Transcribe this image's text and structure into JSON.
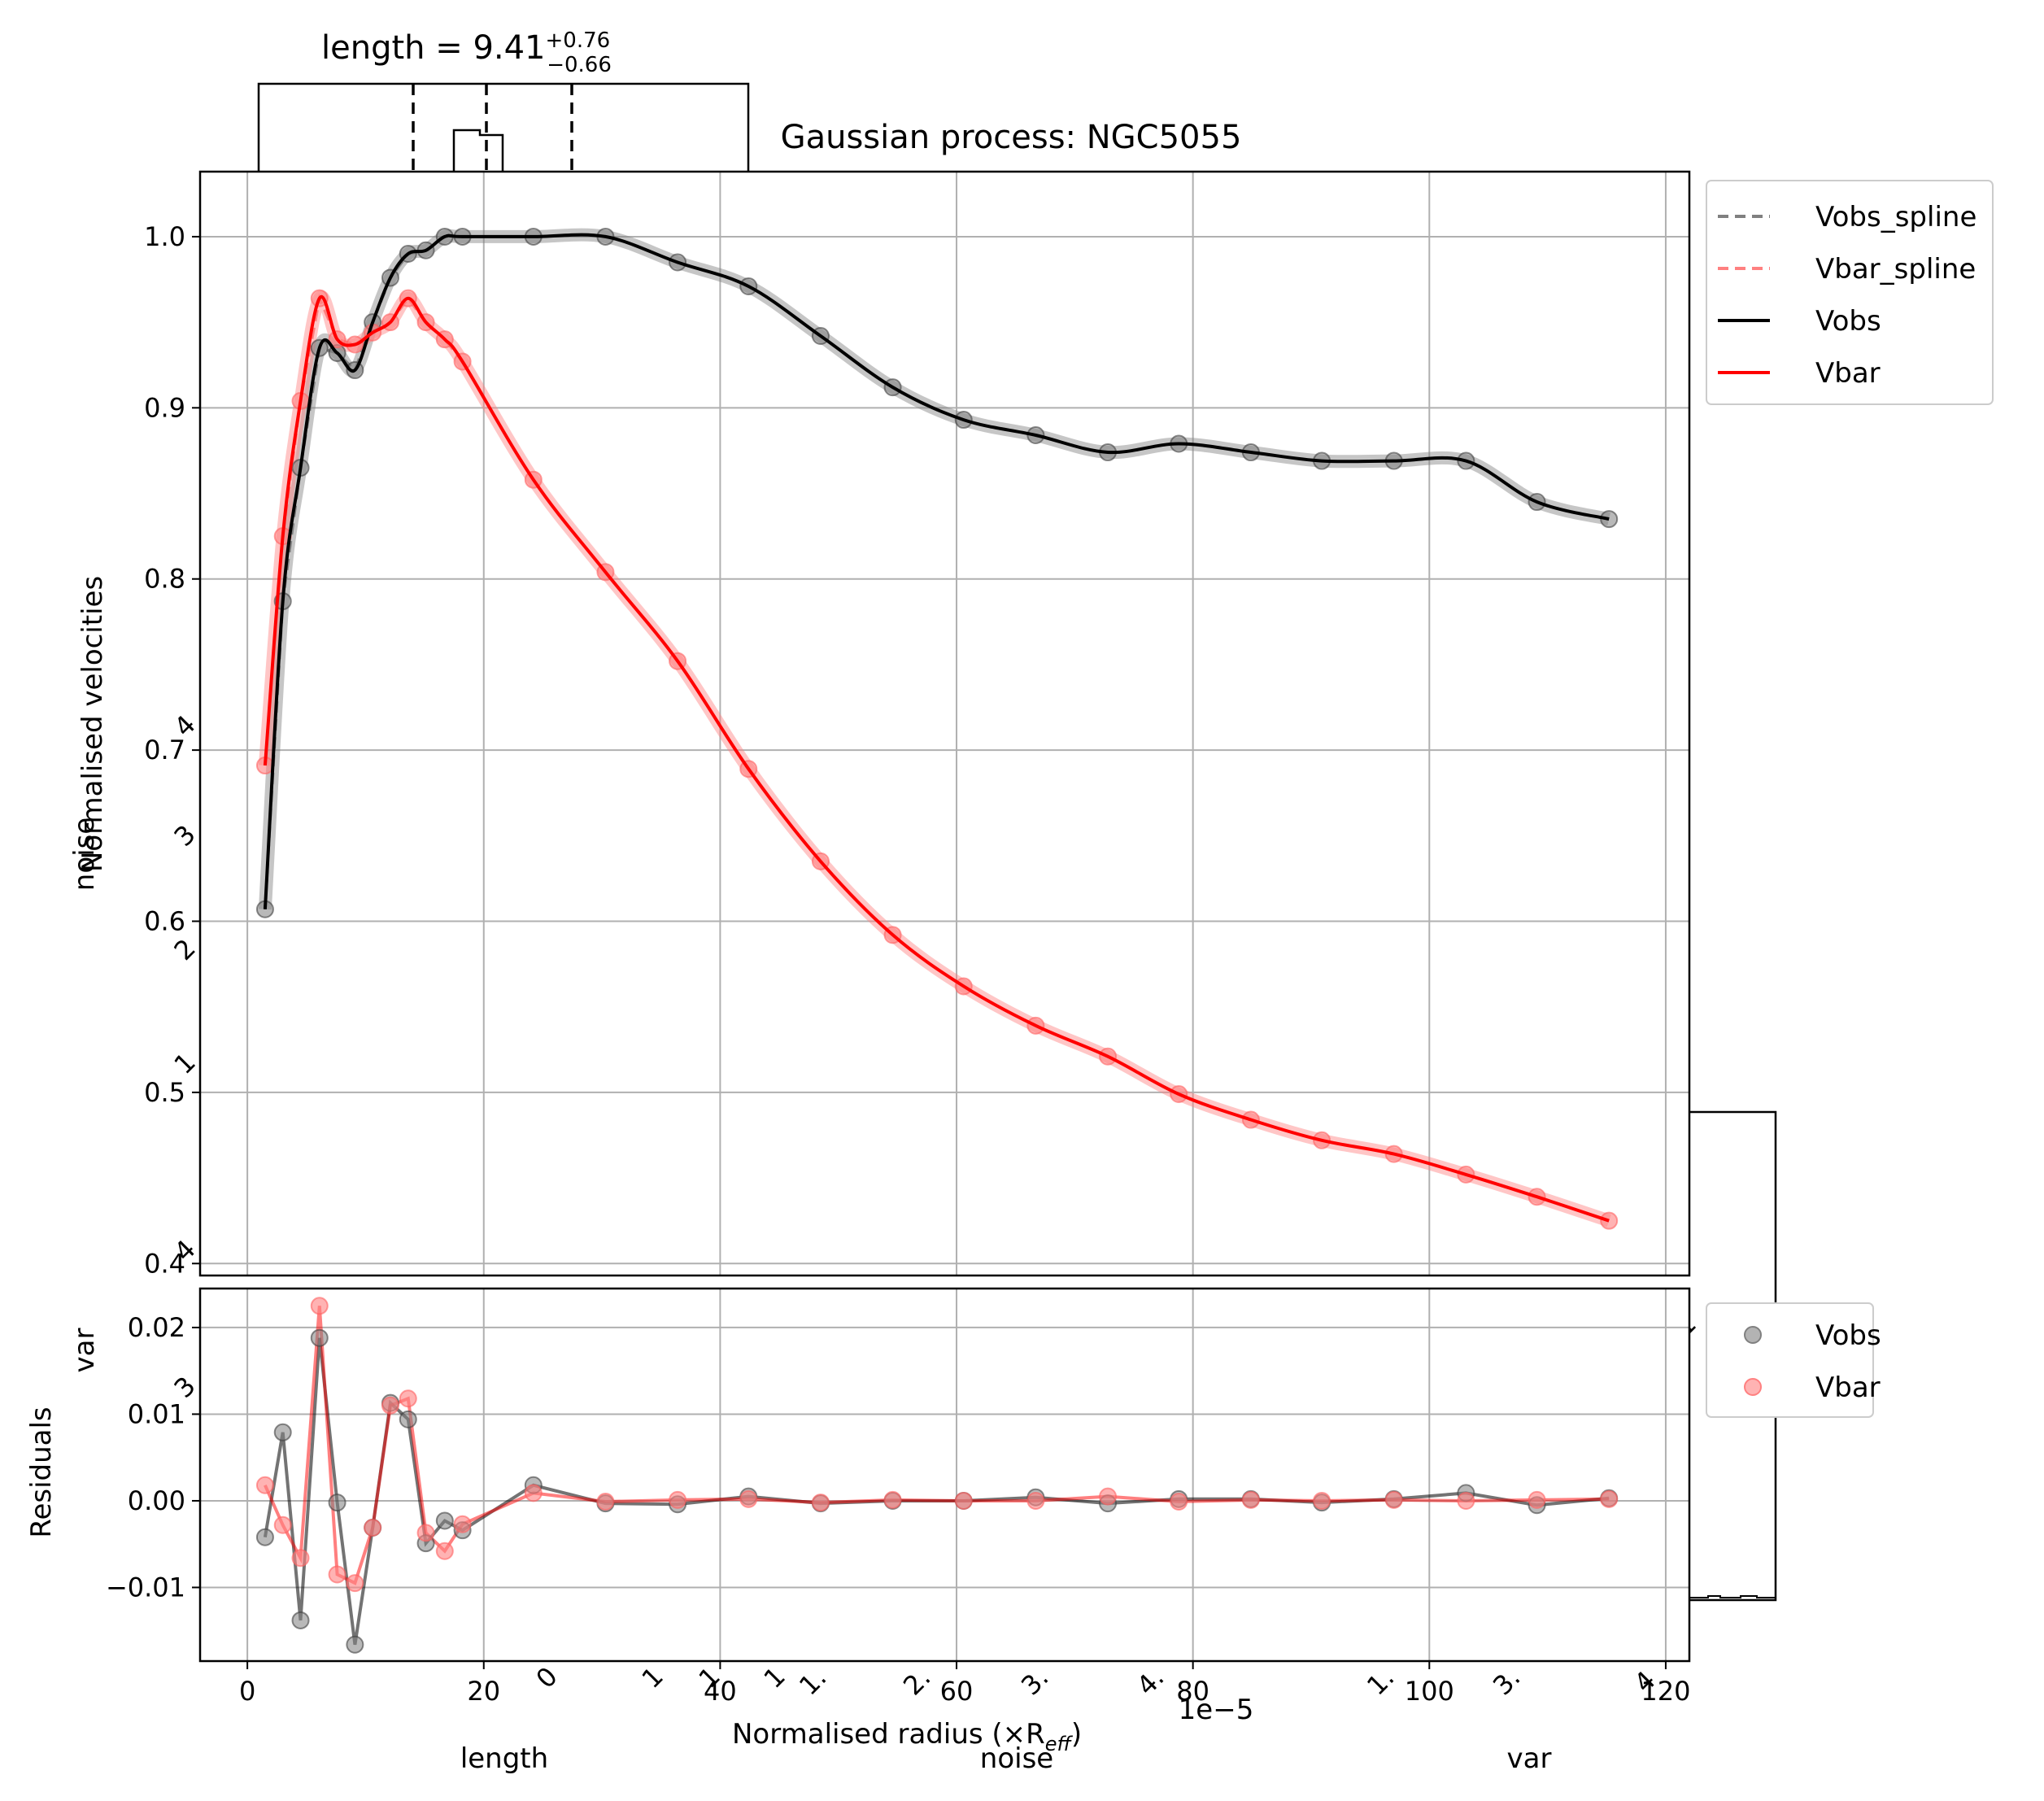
{
  "title": "Gaussian process: NGC5055",
  "corner_title": "length = 9.41",
  "corner_title_sup": "+0.76",
  "corner_title_sub": "−0.66",
  "chart_data": {
    "type": "line",
    "main": {
      "ylabel": "Normalised velocities",
      "xlim": [
        -4,
        122
      ],
      "ylim": [
        0.393,
        1.038
      ],
      "xticks": [
        "0",
        "20",
        "40",
        "60",
        "80",
        "100",
        "120"
      ],
      "yticks": [
        "0.4",
        "0.5",
        "0.6",
        "0.7",
        "0.8",
        "0.9",
        "1.0"
      ],
      "grid": true,
      "legend_position": "outside-top-right",
      "legend": [
        {
          "label": "Vobs_spline",
          "color": "#808080",
          "style": "dashed"
        },
        {
          "label": "Vbar_spline",
          "color": "#ff8080",
          "style": "dashed"
        },
        {
          "label": "Vobs",
          "color": "#000000",
          "style": "solid"
        },
        {
          "label": "Vbar",
          "color": "#ff0000",
          "style": "solid"
        }
      ],
      "x": [
        1.5,
        3.0,
        4.5,
        6.1,
        7.6,
        9.1,
        10.6,
        12.1,
        13.6,
        15.1,
        16.7,
        18.2,
        24.2,
        30.3,
        36.4,
        42.4,
        48.5,
        54.6,
        60.6,
        66.7,
        72.8,
        78.8,
        84.9,
        90.9,
        97.0,
        103.1,
        109.1,
        115.2
      ],
      "Vobs": [
        0.607,
        0.787,
        0.865,
        0.935,
        0.932,
        0.922,
        0.95,
        0.976,
        0.99,
        0.992,
        1.0,
        1.0,
        1.0,
        1.0,
        0.985,
        0.971,
        0.942,
        0.912,
        0.893,
        0.884,
        0.874,
        0.879,
        0.874,
        0.869,
        0.869,
        0.869,
        0.845,
        0.835
      ],
      "Vbar": [
        0.691,
        0.825,
        0.904,
        0.964,
        0.94,
        0.937,
        0.944,
        0.95,
        0.964,
        0.95,
        0.94,
        0.927,
        0.858,
        0.804,
        0.752,
        0.689,
        0.635,
        0.592,
        0.562,
        0.539,
        0.521,
        0.499,
        0.484,
        0.472,
        0.464,
        0.452,
        0.439,
        0.425
      ]
    },
    "residuals": {
      "xlabel": "Normalised radius (×R",
      "xlabel_sub": "eff",
      "xlabel_close": ")",
      "ylabel": "Residuals",
      "ylim": [
        -0.0185,
        0.0245
      ],
      "yticks": [
        "−0.01",
        "0.00",
        "0.01",
        "0.02"
      ],
      "grid": true,
      "legend_position": "outside-right",
      "legend": [
        {
          "label": "Vobs",
          "color": "#808080"
        },
        {
          "label": "Vbar",
          "color": "#ff8080"
        }
      ],
      "Vobs": [
        -0.0042,
        0.0079,
        -0.0138,
        0.0188,
        -0.0002,
        -0.0166,
        -0.0031,
        0.0113,
        0.0094,
        -0.0049,
        -0.0023,
        -0.0034,
        0.0018,
        -0.0003,
        -0.0004,
        0.0005,
        -0.0003,
        0.0,
        0.0,
        0.0004,
        -0.0003,
        0.0002,
        0.0002,
        -0.0002,
        0.0002,
        0.0009,
        -0.0005,
        0.0003
      ],
      "Vbar": [
        0.0018,
        -0.0028,
        -0.0066,
        0.0225,
        -0.0085,
        -0.0095,
        -0.0031,
        0.011,
        0.0118,
        -0.0037,
        -0.0058,
        -0.0027,
        0.0009,
        -0.0001,
        0.0001,
        0.0002,
        -0.0002,
        0.0001,
        0.0,
        0.0,
        0.0005,
        -0.0001,
        0.0001,
        0.0,
        0.0001,
        0.0,
        0.0001,
        0.0002
      ]
    },
    "background_artifacts": {
      "labels": [
        "length",
        "noise",
        "var",
        "noise",
        "var",
        "1e−5"
      ],
      "tick_fragments": [
        "4",
        "3",
        "2",
        "1",
        "4",
        "3",
        "1",
        "0",
        "1",
        "1",
        "1",
        "1.",
        "2.",
        "3.",
        "4.",
        "1.",
        "3.",
        "4"
      ]
    }
  }
}
